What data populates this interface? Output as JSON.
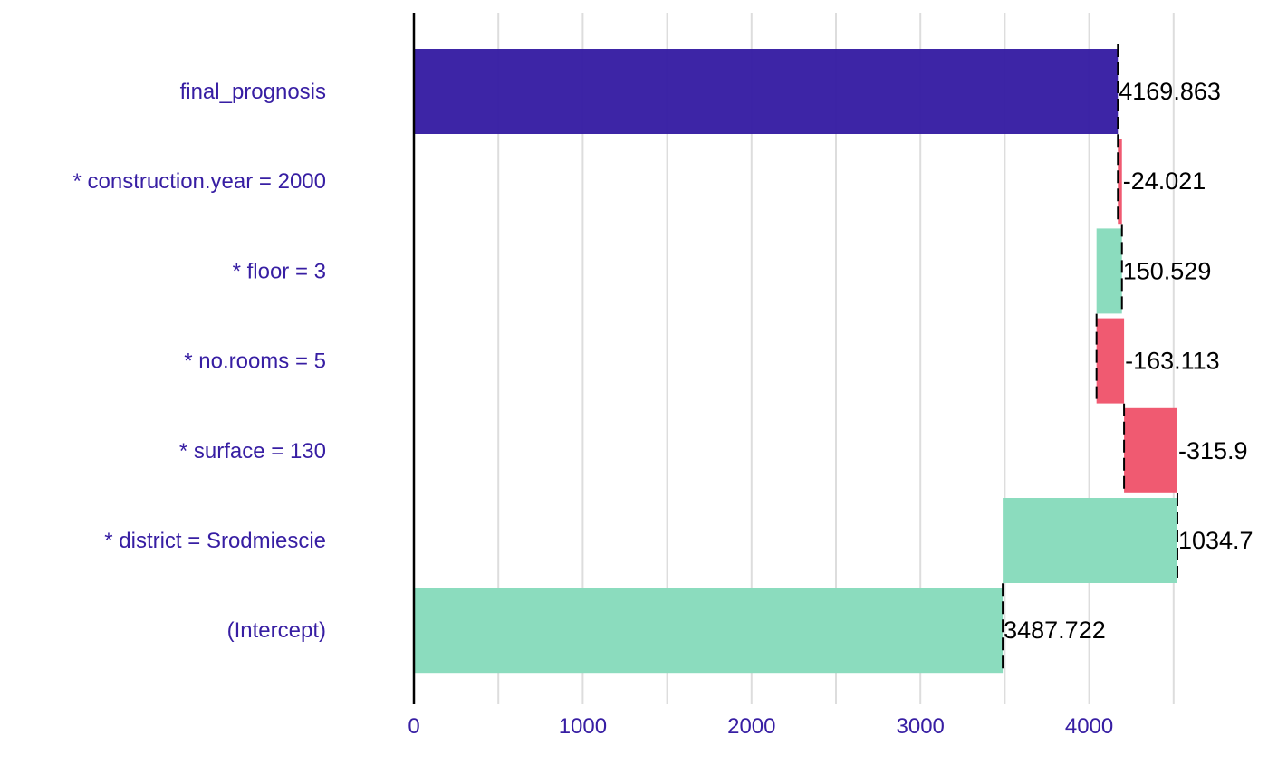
{
  "chart_data": {
    "type": "bar",
    "subtype": "waterfall",
    "orientation": "horizontal",
    "title": "",
    "xlabel": "",
    "ylabel": "",
    "xlim": [
      0,
      4800
    ],
    "x_ticks": [
      0,
      1000,
      2000,
      3000,
      4000
    ],
    "x_ticks_labels": [
      "0",
      "1000",
      "2000",
      "3000",
      "4000"
    ],
    "x_minor_gridlines": [
      500,
      1500,
      2500,
      3500,
      4500
    ],
    "grid": "vertical",
    "legend": "none",
    "categories": [
      "final_prognosis",
      "* construction.year = 2000",
      "* floor = 3",
      "* no.rooms = 5",
      "* surface = 130",
      "* district = Srodmiescie",
      "(Intercept)"
    ],
    "contributions": [
      {
        "label": "final_prognosis",
        "start": 0,
        "end": 4169.863,
        "value_label": "4169.863",
        "kind": "prediction"
      },
      {
        "label": "* construction.year = 2000",
        "start": 4193.884,
        "end": 4169.863,
        "value_label": "-24.021",
        "kind": "negative"
      },
      {
        "label": "* floor = 3",
        "start": 4043.355,
        "end": 4193.884,
        "value_label": "150.529",
        "kind": "positive"
      },
      {
        "label": "* no.rooms = 5",
        "start": 4206.468,
        "end": 4043.355,
        "value_label": "-163.113",
        "kind": "negative"
      },
      {
        "label": "* surface = 130",
        "start": 4522.368,
        "end": 4206.468,
        "value_label": "-315.9",
        "kind": "negative"
      },
      {
        "label": "* district = Srodmiescie",
        "start": 3487.722,
        "end": 4522.368,
        "value_label": "1034.7",
        "kind": "positive"
      },
      {
        "label": "(Intercept)",
        "start": 0,
        "end": 3487.722,
        "value_label": "3487.722",
        "kind": "positive"
      }
    ],
    "colors": {
      "prediction": "#371EA3",
      "positive": "#8BDCBE",
      "negative": "#F05A71",
      "label_text": "#371EA3",
      "value_text": "#000000",
      "grid": "#dddddd",
      "axis": "#000000"
    }
  }
}
